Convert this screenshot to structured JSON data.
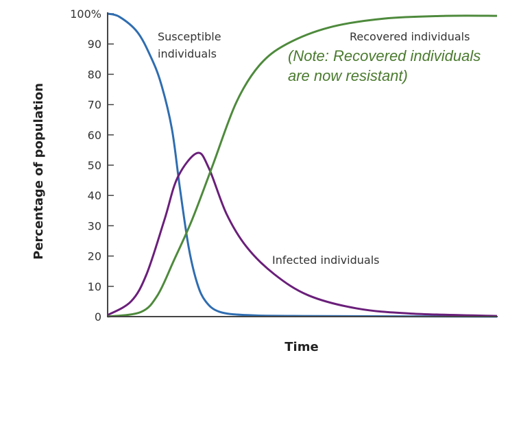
{
  "chart_data": {
    "type": "line",
    "title": "",
    "xlabel": "Time",
    "ylabel": "Percentage of population",
    "ylim": [
      0,
      100
    ],
    "xlim": [
      0,
      100
    ],
    "yticks": [
      "0",
      "10",
      "20",
      "30",
      "40",
      "50",
      "60",
      "70",
      "80",
      "90",
      "100%"
    ],
    "grid": false,
    "series": [
      {
        "name": "Susceptible individuals",
        "color": "#2f6db0",
        "x": [
          0,
          3,
          7.6,
          11,
          13.7,
          16.5,
          18.5,
          20.8,
          23,
          25.2,
          28.7,
          35.7,
          50,
          100
        ],
        "y": [
          100,
          99,
          94,
          86,
          77,
          62,
          43,
          23,
          11,
          5,
          1.6,
          0.5,
          0.2,
          0
        ]
      },
      {
        "name": "Infected individuals",
        "color": "#6a1f7a",
        "x": [
          0,
          6,
          10,
          14.6,
          18,
          23,
          26,
          30.5,
          35.7,
          42.8,
          51.6,
          64,
          78,
          100
        ],
        "y": [
          0.5,
          5,
          14,
          32,
          46,
          54,
          49,
          34,
          23,
          14,
          7,
          2.7,
          1,
          0.2
        ]
      },
      {
        "name": "Recovered individuals",
        "color": "#4e8a3c",
        "x": [
          0,
          8.5,
          12.8,
          17,
          21.7,
          27,
          33,
          39,
          46,
          57,
          71,
          87,
          100
        ],
        "y": [
          0,
          1.5,
          7,
          18.5,
          32,
          50,
          70.6,
          83,
          90,
          95.5,
          98.4,
          99.3,
          99.3
        ]
      }
    ],
    "annotations": {
      "susceptible": [
        "Susceptible",
        "individuals"
      ],
      "recovered": "Recovered individuals",
      "infected": "Infected individuals",
      "note": [
        "(Note: Recovered individuals",
        "are now resistant)"
      ]
    }
  }
}
